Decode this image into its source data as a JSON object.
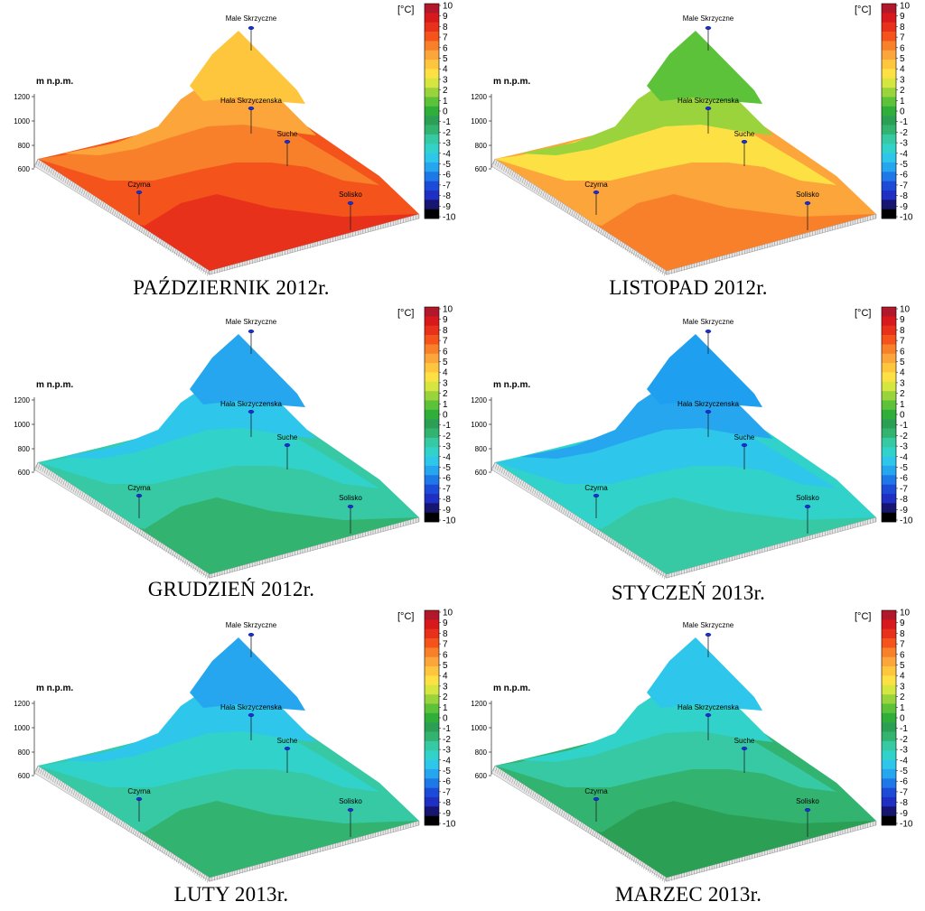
{
  "colorbar": {
    "unit": "[°C]",
    "ticks": [
      "10",
      "9",
      "8",
      "7",
      "6",
      "5",
      "4",
      "3",
      "2",
      "1",
      "0",
      "-1",
      "-2",
      "-3",
      "-4",
      "-5",
      "-6",
      "-7",
      "-8",
      "-9",
      "-10"
    ],
    "colors": [
      "#b2182b",
      "#d7191c",
      "#e8311b",
      "#f4541c",
      "#f8802a",
      "#fba53a",
      "#fdc63d",
      "#fde044",
      "#d5e640",
      "#9bd33c",
      "#5cc23a",
      "#2fae3a",
      "#2ba055",
      "#32b470",
      "#36c9a3",
      "#31d2c9",
      "#2ec6ea",
      "#26a6ef",
      "#1f78e8",
      "#1c4bd8",
      "#1f2ec3",
      "#161670",
      "#000000"
    ]
  },
  "axis": {
    "title": "m n.p.m.",
    "ticks": [
      "1200",
      "1000",
      "800",
      "600"
    ]
  },
  "stations": {
    "male": "Male Skrzyczne",
    "hala": "Hala Skrzyczenska",
    "suche": "Suche",
    "czyrna": "Czyrna",
    "solisko": "Solisko"
  },
  "maps": [
    {
      "caption": "PAŹDZIERNIK 2012r.",
      "bands": [
        "#e8311b",
        "#f4541c",
        "#f8802a",
        "#fba53a",
        "#fdc63d"
      ]
    },
    {
      "caption": "LISTOPAD 2012r.",
      "bands": [
        "#f8802a",
        "#fba53a",
        "#fde044",
        "#9bd33c",
        "#5cc23a"
      ]
    },
    {
      "caption": "GRUDZIEŃ 2012r.",
      "bands": [
        "#32b470",
        "#36c9a3",
        "#31d2c9",
        "#2ec6ea",
        "#26a6ef"
      ]
    },
    {
      "caption": "STYCZEŃ 2013r.",
      "bands": [
        "#36c9a3",
        "#31d2c9",
        "#2ec6ea",
        "#26a6ef",
        "#1f9ff0"
      ]
    },
    {
      "caption": "LUTY 2013r.",
      "bands": [
        "#32b470",
        "#36c9a3",
        "#31d2c9",
        "#2ec6ea",
        "#26a6ef"
      ]
    },
    {
      "caption": "MARZEC 2013r.",
      "bands": [
        "#2ba055",
        "#32b470",
        "#36c9a3",
        "#31d2c9",
        "#2ec6ea"
      ]
    }
  ]
}
